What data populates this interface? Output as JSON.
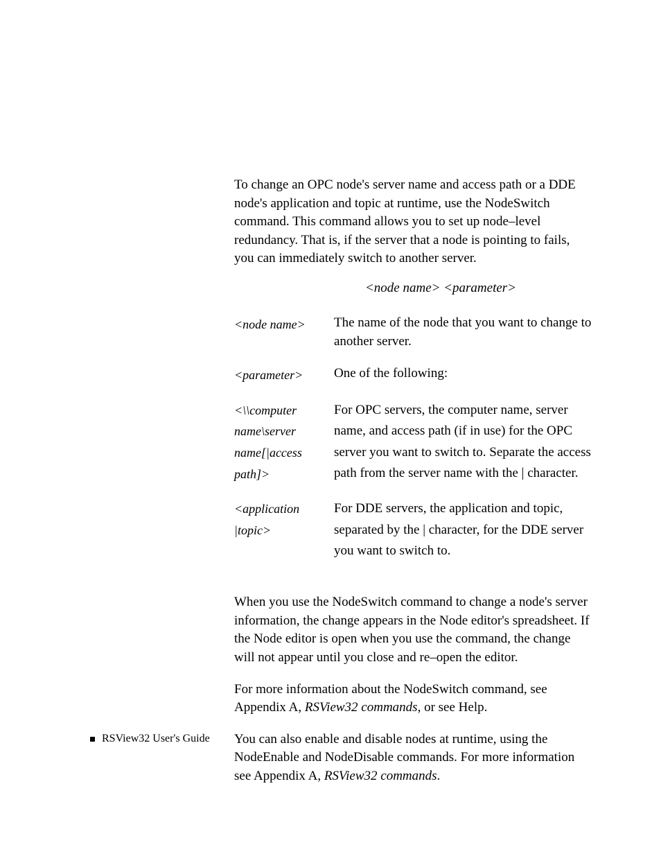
{
  "intro": "To change an OPC node's server name and access path or a DDE node's application and topic at runtime, use the NodeSwitch command. This command allows you to set up node–level redundancy. That is, if the server that a node is pointing to fails, you can immediately switch to another server.",
  "syntax": "<node name> <parameter>",
  "definitions": [
    {
      "term": "<node name>",
      "desc": "The name of the node that you want to change to another server."
    },
    {
      "term": "<parameter>",
      "desc": "One of the following:"
    },
    {
      "term": "<\\\\computer name\\server name[|access path]>",
      "desc": "For OPC servers, the computer name, server name, and access path (if in use) for the OPC server you want to switch to. Separate the access path from the server name with the | character."
    },
    {
      "term": "<application |topic>",
      "desc": "For DDE servers, the application and topic, separated by the | character, for the DDE server you want to switch to."
    }
  ],
  "para2": "When you use the NodeSwitch command to change a node's server information, the change appears in the Node editor's spreadsheet. If the Node editor is open when you use the command, the change will not appear until you close and re–open the editor.",
  "para3_pre": "For more information about the NodeSwitch command, see Appendix A, ",
  "para3_em": "RSView32 commands",
  "para3_post": ", or see Help.",
  "para4_pre": "You can also enable and disable nodes at runtime, using the NodeEnable and NodeDisable commands. For more information see Appendix A, ",
  "para4_em": "RSView32 commands",
  "para4_post": ".",
  "footer": "RSView32  User's Guide"
}
